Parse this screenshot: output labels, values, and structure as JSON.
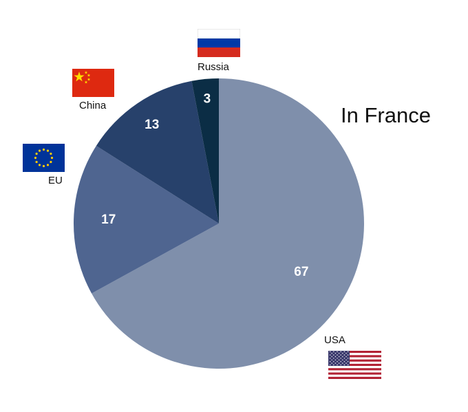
{
  "chart_data": {
    "type": "pie",
    "title": "In France",
    "categories": [
      "USA",
      "EU",
      "China",
      "Russia"
    ],
    "values": [
      67,
      17,
      13,
      3
    ],
    "colors": [
      "#7f8fab",
      "#4f6590",
      "#27416b",
      "#0b2d45"
    ],
    "start": "top",
    "direction": "clockwise",
    "legend": "none",
    "flags": [
      "usa-flag-icon",
      "eu-flag-icon",
      "china-flag-icon",
      "russia-flag-icon"
    ]
  }
}
